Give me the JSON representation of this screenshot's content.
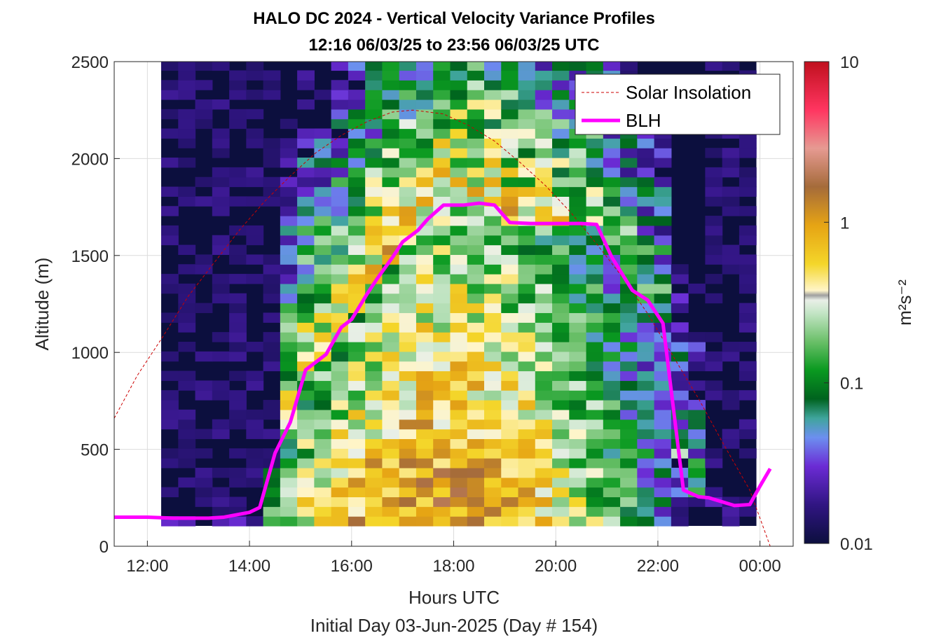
{
  "chart_data": {
    "type": "heatmap",
    "title": "HALO DC 2024 - Vertical Velocity Variance Profiles",
    "subtitle": "12:16 06/03/25 to 23:56 06/03/25  UTC",
    "xlabel": "Hours UTC",
    "ylabel": "Altitude (m)",
    "footer": "Initial Day 03-Jun-2025 (Day # 154)",
    "xlim": [
      11.35,
      24.65
    ],
    "ylim": [
      0,
      2500
    ],
    "x_ticks": [
      12,
      14,
      16,
      18,
      20,
      22,
      24
    ],
    "x_tick_labels": [
      "12:00",
      "14:00",
      "16:00",
      "18:00",
      "20:00",
      "22:00",
      "00:00"
    ],
    "y_ticks": [
      0,
      500,
      1000,
      1500,
      2000,
      2500
    ],
    "y_tick_labels": [
      "0",
      "500",
      "1000",
      "1500",
      "2000",
      "2500"
    ],
    "grid": true,
    "legend_position": "top-right",
    "colorbar": {
      "label": "m²s⁻²",
      "scale": "log",
      "range": [
        0.01,
        10
      ],
      "tick_values": [
        0.01,
        0.1,
        1,
        10
      ],
      "tick_labels": [
        "0.01",
        "0.1",
        "1",
        "10"
      ]
    },
    "heatmap_extent": {
      "time_start": 12.27,
      "time_end": 23.93,
      "alt_start": 105,
      "alt_end": 2500,
      "bin_hours": 0.333,
      "bin_alt": 50
    },
    "series": [
      {
        "name": "Solar Insolation",
        "style": "dashed",
        "color": "#cc0000",
        "x": [
          11.35,
          11.8,
          12.3,
          12.8,
          13.3,
          13.8,
          14.3,
          14.8,
          15.3,
          15.8,
          16.3,
          16.8,
          17.2,
          17.8,
          18.3,
          18.8,
          19.3,
          19.8,
          20.3,
          20.8,
          21.3,
          21.8,
          22.3,
          22.8,
          23.3,
          23.8,
          24.2,
          24.6
        ],
        "y": [
          660,
          880,
          1080,
          1290,
          1460,
          1630,
          1780,
          1910,
          2030,
          2120,
          2190,
          2240,
          2250,
          2230,
          2170,
          2090,
          1980,
          1860,
          1720,
          1560,
          1390,
          1200,
          980,
          760,
          520,
          290,
          0,
          0
        ]
      },
      {
        "name": "BLH",
        "style": "solid",
        "color": "#ff00ff",
        "x": [
          11.35,
          12.0,
          12.5,
          13.2,
          13.5,
          14.0,
          14.2,
          14.5,
          14.8,
          15.1,
          15.5,
          15.8,
          16.0,
          16.3,
          16.5,
          16.8,
          17.0,
          17.3,
          17.5,
          17.8,
          18.2,
          18.5,
          18.8,
          19.1,
          19.5,
          20.0,
          20.5,
          20.8,
          21.1,
          21.5,
          21.8,
          22.1,
          22.3,
          22.5,
          22.8,
          23.0,
          23.5,
          23.8,
          24.0,
          24.2
        ],
        "y": [
          150,
          150,
          145,
          145,
          150,
          175,
          200,
          480,
          640,
          910,
          990,
          1130,
          1170,
          1300,
          1380,
          1490,
          1570,
          1630,
          1690,
          1760,
          1760,
          1770,
          1760,
          1670,
          1665,
          1665,
          1665,
          1660,
          1490,
          1320,
          1270,
          1150,
          720,
          290,
          255,
          250,
          210,
          215,
          310,
          400
        ]
      }
    ],
    "legend": [
      "Solar Insolation",
      "BLH"
    ]
  }
}
